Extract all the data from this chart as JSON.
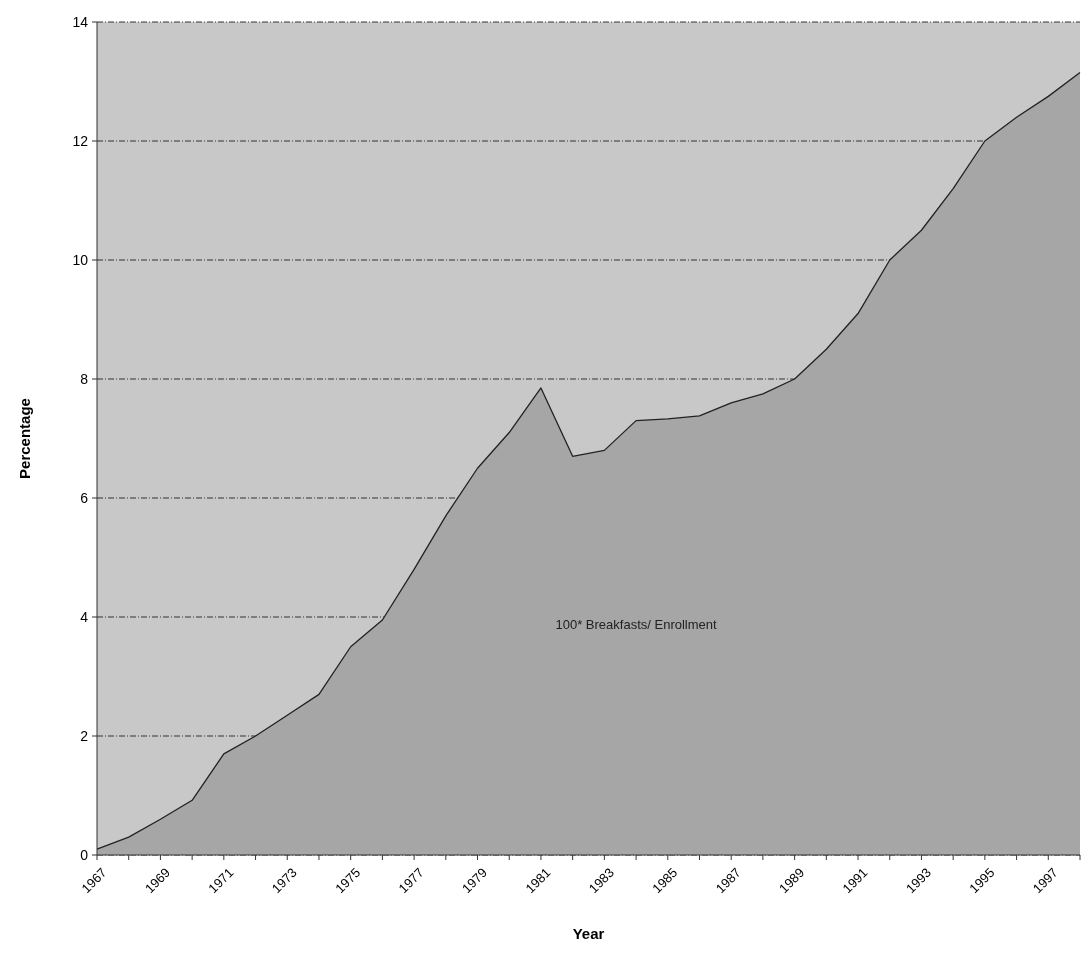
{
  "chart_data": {
    "type": "area",
    "xlabel": "Year",
    "ylabel": "Percentage",
    "categories": [
      "1967",
      null,
      "1969",
      null,
      "1971",
      null,
      "1973",
      null,
      "1975",
      null,
      "1977",
      null,
      "1979",
      null,
      "1981",
      null,
      "1983",
      null,
      "1985",
      null,
      "1987",
      null,
      "1989",
      null,
      "1991",
      null,
      "1993",
      null,
      "1995",
      null,
      "1997",
      null
    ],
    "series": [
      {
        "name": "100* Breakfasts/ Enrollment",
        "color": "#a6a6a6",
        "values": [
          0.1,
          0.3,
          0.6,
          0.92,
          1.7,
          2.0,
          2.35,
          2.7,
          3.5,
          3.95,
          4.8,
          5.7,
          6.5,
          7.1,
          7.85,
          6.7,
          6.8,
          7.3,
          7.33,
          7.38,
          7.6,
          7.75,
          8.0,
          8.5,
          9.1,
          10.0,
          10.5,
          11.2,
          12.0,
          12.4,
          12.75,
          13.15
        ]
      }
    ],
    "ylim": [
      0,
      14
    ],
    "yticks": [
      0,
      2,
      4,
      6,
      8,
      10,
      12,
      14
    ],
    "grid": "y",
    "legend": false
  }
}
